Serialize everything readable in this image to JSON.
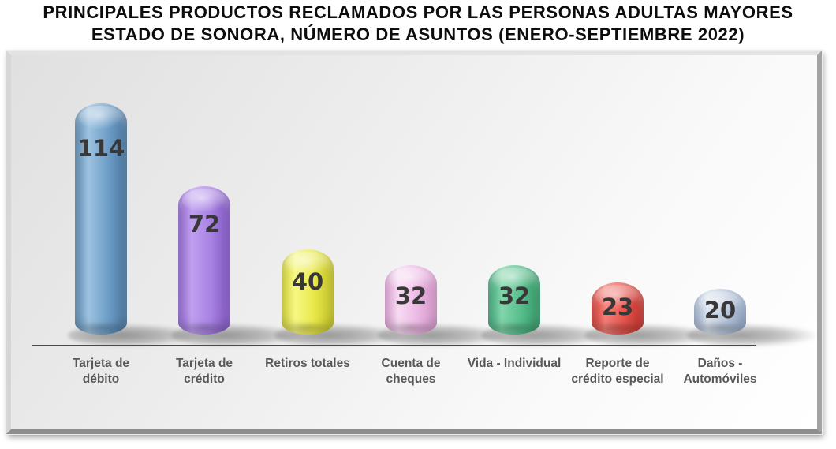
{
  "title": {
    "line1": "PRINCIPALES PRODUCTOS RECLAMADOS POR LAS PERSONAS ADULTAS MAYORES",
    "line2": "ESTADO DE SONORA, NÚMERO DE ASUNTOS (ENERO-SEPTIEMBRE 2022)"
  },
  "chart_data": {
    "type": "bar",
    "style": "3d-cylinder",
    "title": "PRINCIPALES PRODUCTOS RECLAMADOS POR LAS PERSONAS ADULTAS MAYORES ESTADO DE SONORA, NÚMERO DE ASUNTOS (ENERO-SEPTIEMBRE 2022)",
    "categories": [
      "Tarjeta de débito",
      "Tarjeta de crédito",
      "Retiros totales",
      "Cuenta de cheques",
      "Vida - Individual",
      "Reporte de crédito especial",
      "Daños - Automóviles"
    ],
    "values": [
      114,
      72,
      40,
      32,
      32,
      23,
      20
    ],
    "xlabel": "",
    "ylabel": "",
    "ylim": [
      0,
      120
    ],
    "grid": false,
    "legend": "none",
    "data_labels_shown": true,
    "axis_line_color": "#4a4a4a",
    "category_label_color": "#595959",
    "value_label_color": "#383838",
    "bars": [
      {
        "category": "Tarjeta de débito",
        "value": 114,
        "colors": {
          "edge_left": "#5a87ae",
          "highlight": "#9dc3e0",
          "main": "#6f9fc9",
          "edge_right": "#49759d"
        }
      },
      {
        "category": "Tarjeta de crédito",
        "value": 72,
        "colors": {
          "edge_left": "#8e63cc",
          "highlight": "#c0a0f0",
          "main": "#a982e4",
          "edge_right": "#7e55bd"
        }
      },
      {
        "category": "Retiros totales",
        "value": 40,
        "colors": {
          "edge_left": "#cfcf35",
          "highlight": "#f7f784",
          "main": "#e9e94b",
          "edge_right": "#bfbf28"
        }
      },
      {
        "category": "Cuenta de cheques",
        "value": 32,
        "colors": {
          "edge_left": "#d89cce",
          "highlight": "#f8dbf3",
          "main": "#edb9e5",
          "edge_right": "#cf93c5"
        }
      },
      {
        "category": "Vida - Individual",
        "value": 32,
        "colors": {
          "edge_left": "#3da377",
          "highlight": "#82d6ab",
          "main": "#57bf8c",
          "edge_right": "#359568"
        }
      },
      {
        "category": "Reporte de crédito especial",
        "value": 23,
        "colors": {
          "edge_left": "#cc3a34",
          "highlight": "#f58078",
          "main": "#e6554e",
          "edge_right": "#bf322c"
        }
      },
      {
        "category": "Daños - Automóviles",
        "value": 20,
        "colors": {
          "edge_left": "#9aacc8",
          "highlight": "#d9e2ee",
          "main": "#b6c4da",
          "edge_right": "#8fa3c2"
        }
      }
    ]
  }
}
